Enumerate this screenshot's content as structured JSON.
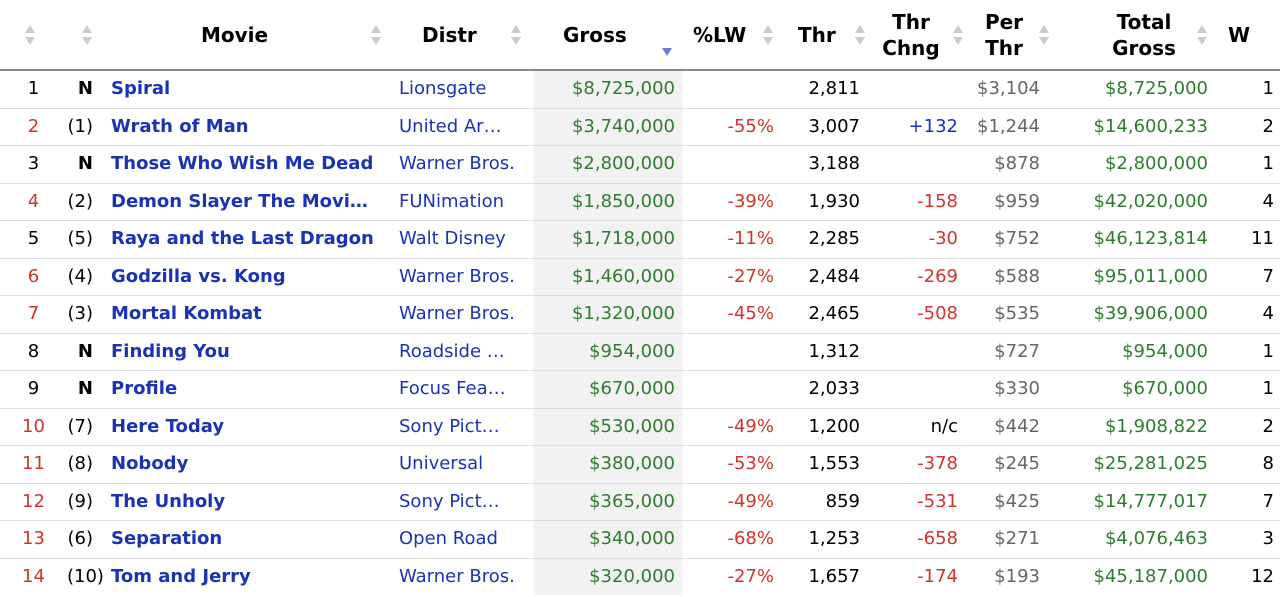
{
  "colors": {
    "link": "#1a33b5",
    "gross": "#2e7d2e",
    "negative": "#d0342c",
    "positive": "#1a33b5",
    "per_theater": "#666666",
    "sorted_column_bg": "#f2f2f2",
    "sort_active_arrow": "#6a7fd8",
    "sort_inactive_arrow": "#cccccc"
  },
  "columns": {
    "rank": "",
    "last_week": "",
    "movie": "Movie",
    "distr": "Distr",
    "gross": "Gross",
    "pct_lw": "%LW",
    "thr": "Thr",
    "thr_chng_1": "Thr",
    "thr_chng_2": "Chng",
    "per_thr_1": "Per",
    "per_thr_2": "Thr",
    "total_gross_1": "Total",
    "total_gross_2": "Gross",
    "weeks": "W"
  },
  "sort": {
    "active_column": "gross",
    "direction": "descending",
    "icons": [
      "sort-arrows-icon",
      "sort-descending-icon"
    ]
  },
  "rows": [
    {
      "rank": "1",
      "rank_style": "plain",
      "lw": "N",
      "movie": "Spiral",
      "distr": "Lionsgate",
      "gross": "$8,725,000",
      "pct": "",
      "thr": "2,811",
      "chng": "",
      "chng_style": "plain",
      "per": "$3,104",
      "total": "$8,725,000",
      "weeks": "1"
    },
    {
      "rank": "2",
      "rank_style": "red",
      "lw": "(1)",
      "movie": "Wrath of Man",
      "distr": "United Ar…",
      "gross": "$3,740,000",
      "pct": "-55%",
      "thr": "3,007",
      "chng": "+132",
      "chng_style": "blue",
      "per": "$1,244",
      "total": "$14,600,233",
      "weeks": "2"
    },
    {
      "rank": "3",
      "rank_style": "plain",
      "lw": "N",
      "movie": "Those Who Wish Me Dead",
      "distr": "Warner Bros.",
      "gross": "$2,800,000",
      "pct": "",
      "thr": "3,188",
      "chng": "",
      "chng_style": "plain",
      "per": "$878",
      "total": "$2,800,000",
      "weeks": "1"
    },
    {
      "rank": "4",
      "rank_style": "red",
      "lw": "(2)",
      "movie": "Demon Slayer The Movi…",
      "distr": "FUNimation",
      "gross": "$1,850,000",
      "pct": "-39%",
      "thr": "1,930",
      "chng": "-158",
      "chng_style": "red",
      "per": "$959",
      "total": "$42,020,000",
      "weeks": "4"
    },
    {
      "rank": "5",
      "rank_style": "plain",
      "lw": "(5)",
      "movie": "Raya and the Last Dragon",
      "distr": "Walt Disney",
      "gross": "$1,718,000",
      "pct": "-11%",
      "thr": "2,285",
      "chng": "-30",
      "chng_style": "red",
      "per": "$752",
      "total": "$46,123,814",
      "weeks": "11"
    },
    {
      "rank": "6",
      "rank_style": "red",
      "lw": "(4)",
      "movie": "Godzilla vs. Kong",
      "distr": "Warner Bros.",
      "gross": "$1,460,000",
      "pct": "-27%",
      "thr": "2,484",
      "chng": "-269",
      "chng_style": "red",
      "per": "$588",
      "total": "$95,011,000",
      "weeks": "7"
    },
    {
      "rank": "7",
      "rank_style": "red",
      "lw": "(3)",
      "movie": "Mortal Kombat",
      "distr": "Warner Bros.",
      "gross": "$1,320,000",
      "pct": "-45%",
      "thr": "2,465",
      "chng": "-508",
      "chng_style": "red",
      "per": "$535",
      "total": "$39,906,000",
      "weeks": "4"
    },
    {
      "rank": "8",
      "rank_style": "plain",
      "lw": "N",
      "movie": "Finding You",
      "distr": "Roadside …",
      "gross": "$954,000",
      "pct": "",
      "thr": "1,312",
      "chng": "",
      "chng_style": "plain",
      "per": "$727",
      "total": "$954,000",
      "weeks": "1"
    },
    {
      "rank": "9",
      "rank_style": "plain",
      "lw": "N",
      "movie": "Profile",
      "distr": "Focus Fea…",
      "gross": "$670,000",
      "pct": "",
      "thr": "2,033",
      "chng": "",
      "chng_style": "plain",
      "per": "$330",
      "total": "$670,000",
      "weeks": "1"
    },
    {
      "rank": "10",
      "rank_style": "red",
      "lw": "(7)",
      "movie": "Here Today",
      "distr": "Sony Pict…",
      "gross": "$530,000",
      "pct": "-49%",
      "thr": "1,200",
      "chng": "n/c",
      "chng_style": "plain",
      "per": "$442",
      "total": "$1,908,822",
      "weeks": "2"
    },
    {
      "rank": "11",
      "rank_style": "red",
      "lw": "(8)",
      "movie": "Nobody",
      "distr": "Universal",
      "gross": "$380,000",
      "pct": "-53%",
      "thr": "1,553",
      "chng": "-378",
      "chng_style": "red",
      "per": "$245",
      "total": "$25,281,025",
      "weeks": "8"
    },
    {
      "rank": "12",
      "rank_style": "red",
      "lw": "(9)",
      "movie": "The Unholy",
      "distr": "Sony Pict…",
      "gross": "$365,000",
      "pct": "-49%",
      "thr": "859",
      "chng": "-531",
      "chng_style": "red",
      "per": "$425",
      "total": "$14,777,017",
      "weeks": "7"
    },
    {
      "rank": "13",
      "rank_style": "red",
      "lw": "(6)",
      "movie": "Separation",
      "distr": "Open Road",
      "gross": "$340,000",
      "pct": "-68%",
      "thr": "1,253",
      "chng": "-658",
      "chng_style": "red",
      "per": "$271",
      "total": "$4,076,463",
      "weeks": "3"
    },
    {
      "rank": "14",
      "rank_style": "red",
      "lw": "(10)",
      "movie": "Tom and Jerry",
      "distr": "Warner Bros.",
      "gross": "$320,000",
      "pct": "-27%",
      "thr": "1,657",
      "chng": "-174",
      "chng_style": "red",
      "per": "$193",
      "total": "$45,187,000",
      "weeks": "12"
    }
  ]
}
